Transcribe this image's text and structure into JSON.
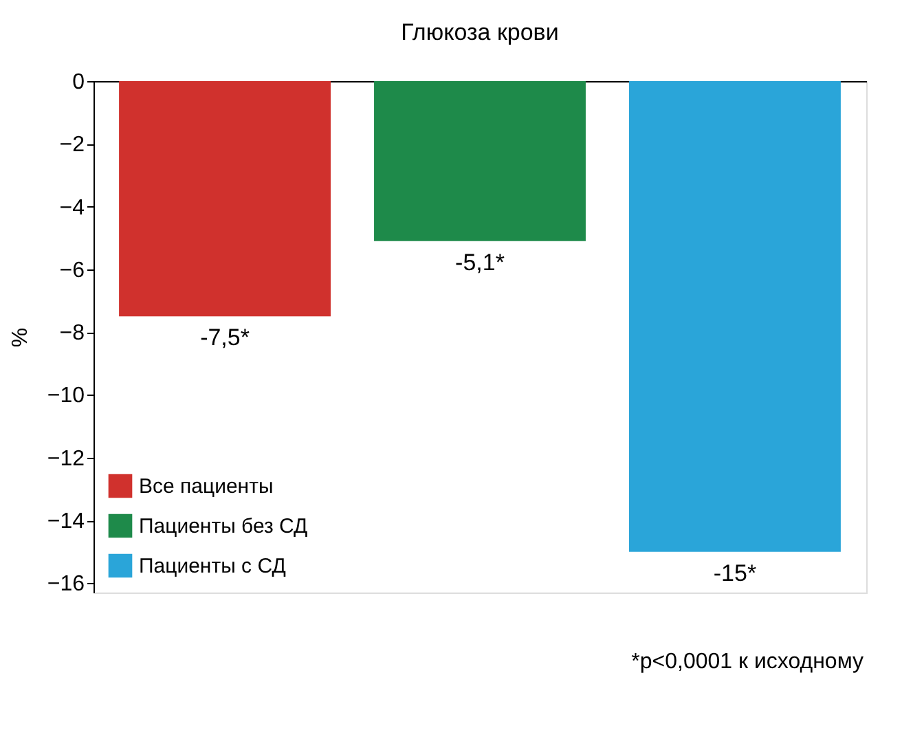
{
  "chart_data": {
    "type": "bar",
    "title": "Глюкоза крови",
    "ylabel": "%",
    "categories": [
      null,
      null,
      null
    ],
    "series": [
      {
        "name": "Все пациенты",
        "color": "#d0312d",
        "values": [
          -7.5,
          null,
          null
        ],
        "value_labels": [
          "-7,5*",
          null,
          null
        ]
      },
      {
        "name": "Пациенты без СД",
        "color": "#1e8a4a",
        "values": [
          null,
          -5.1,
          null
        ],
        "value_labels": [
          null,
          "-5,1*",
          null
        ]
      },
      {
        "name": "Пациенты с СД",
        "color": "#2aa5d9",
        "values": [
          null,
          null,
          -15
        ],
        "value_labels": [
          null,
          null,
          "-15*"
        ]
      }
    ],
    "ylim": [
      -16.3,
      0
    ],
    "yticks": [
      0,
      -2,
      -4,
      -6,
      -8,
      -10,
      -12,
      -14,
      -16
    ],
    "tick_labels": "y",
    "grid": false,
    "legend": "bottom left",
    "annotations": [
      "*p<0,0001 к исходному"
    ]
  }
}
